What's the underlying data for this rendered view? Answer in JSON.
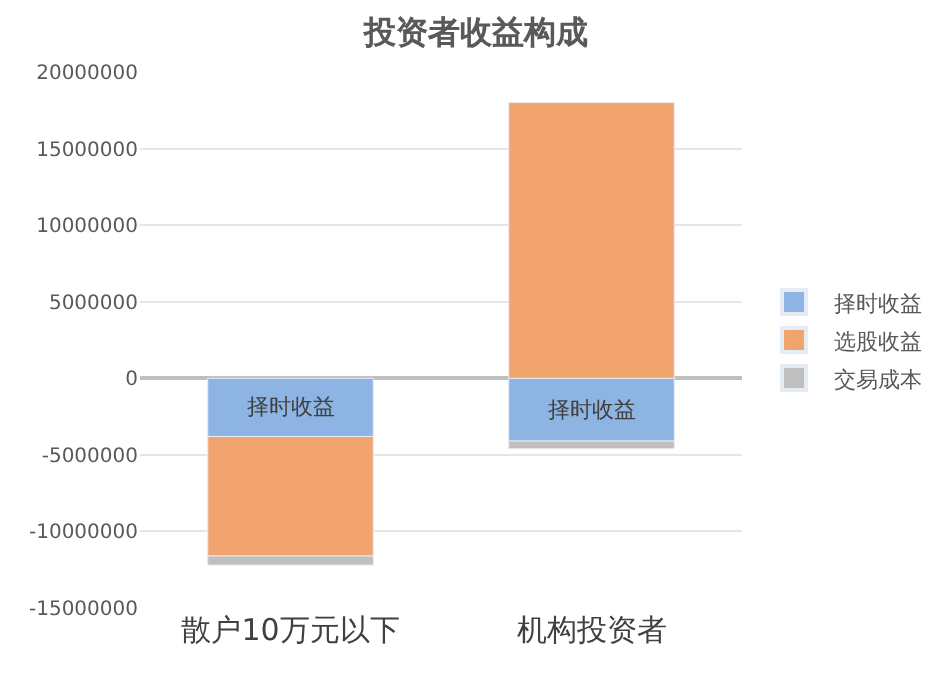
{
  "chart_data": {
    "type": "bar",
    "title": "投资者收益构成",
    "stacked": true,
    "categories": [
      "散户10万元以下",
      "机构投资者"
    ],
    "series": [
      {
        "name": "择时收益",
        "color": "#8db4e2",
        "values": [
          -3800000,
          -4100000
        ],
        "value_labels": [
          "择时收益",
          "择时收益"
        ]
      },
      {
        "name": "选股收益",
        "color": "#f2a46e",
        "values": [
          -7800000,
          18000000
        ]
      },
      {
        "name": "交易成本",
        "color": "#bfbfbf",
        "values": [
          -600000,
          -500000
        ]
      }
    ],
    "ylim": [
      -15000000,
      20000000
    ],
    "yticks": [
      -15000000,
      -10000000,
      -5000000,
      0,
      5000000,
      10000000,
      15000000,
      20000000
    ],
    "grid": "y",
    "legend": "right"
  }
}
